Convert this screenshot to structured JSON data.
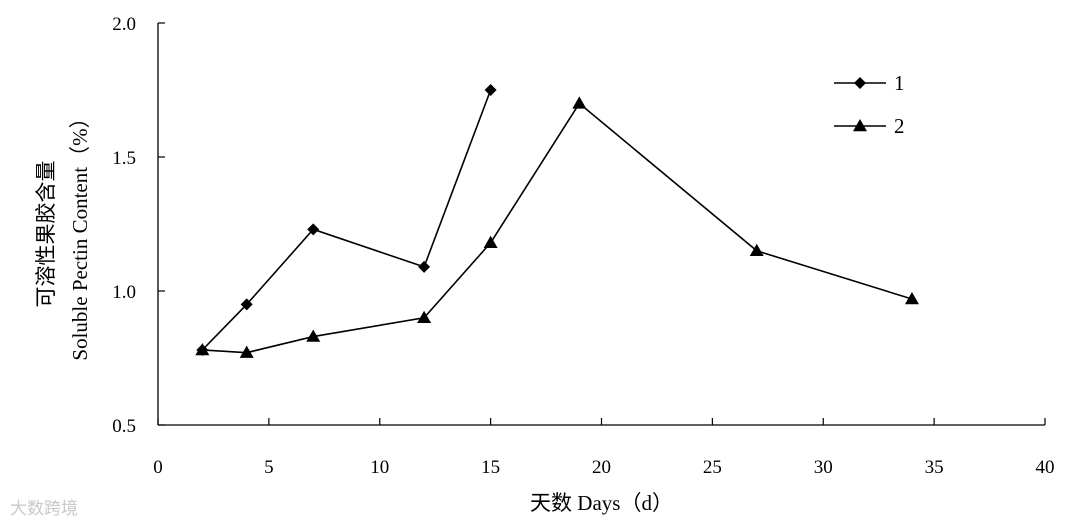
{
  "chart_data": {
    "type": "line",
    "title": "",
    "xlabel": "天数 Days（d）",
    "ylabel_lines": [
      "可溶性果胶含量",
      "Soluble Pectin Content（%）"
    ],
    "xlim": [
      0,
      40
    ],
    "ylim": [
      0.5,
      2.0
    ],
    "x_ticks": [
      "0",
      "5",
      "10",
      "15",
      "20",
      "25",
      "30",
      "35",
      "40"
    ],
    "y_ticks": [
      "0.5",
      "1.0",
      "1.5",
      "2.0"
    ],
    "grid": false,
    "legend_position": "top-right",
    "series": [
      {
        "name": "1",
        "marker": "diamond",
        "color": "#000000",
        "x": [
          2,
          4,
          7,
          12,
          15
        ],
        "y": [
          0.78,
          0.95,
          1.23,
          1.09,
          1.75
        ]
      },
      {
        "name": "2",
        "marker": "triangle",
        "color": "#000000",
        "x": [
          2,
          4,
          7,
          12,
          15,
          19,
          27,
          34
        ],
        "y": [
          0.78,
          0.77,
          0.83,
          0.9,
          1.18,
          1.7,
          1.15,
          0.97
        ]
      }
    ]
  },
  "watermark": "大数跨境"
}
